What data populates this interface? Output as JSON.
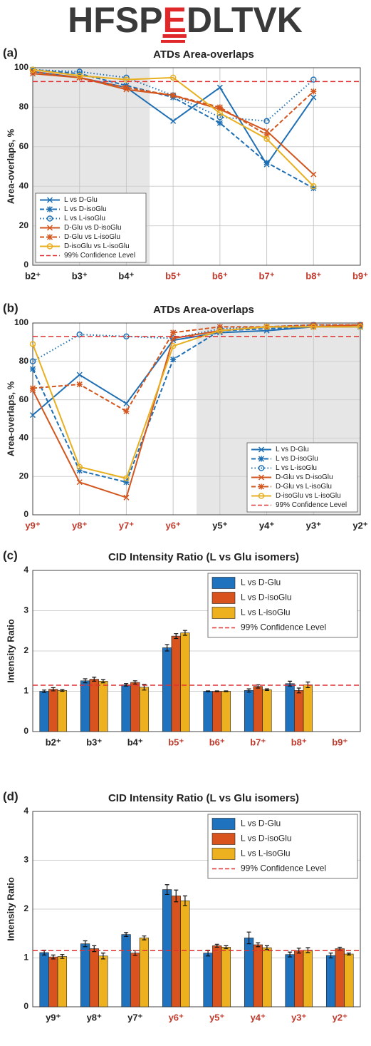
{
  "header": {
    "prefix": "HFSP",
    "highlight": "E",
    "suffix": "DLTVK"
  },
  "chart_data": [
    {
      "type": "line",
      "panel": "(a)",
      "title": "ATDs Area-overlaps",
      "ylabel": "Area-overlaps, %",
      "categories": [
        "b2⁺",
        "b3⁺",
        "b4⁺",
        "b5⁺",
        "b6⁺",
        "b7⁺",
        "b8⁺",
        "b9⁺"
      ],
      "category_colors": [
        "#222222",
        "#222222",
        "#222222",
        "#c0392b",
        "#c0392b",
        "#c0392b",
        "#c0392b",
        "#c0392b"
      ],
      "ylim": [
        0,
        100
      ],
      "yticks": [
        0,
        20,
        40,
        60,
        80,
        100
      ],
      "grid": true,
      "legend": "lower left",
      "shade": [
        0,
        2.5
      ],
      "reference_line": {
        "name": "99% Confidence Level",
        "value": 93,
        "color": "#e03030"
      },
      "series": [
        {
          "name": "L vs D-Glu",
          "color": "#1f6fb4",
          "linestyle": "solid",
          "marker": "x",
          "values": [
            98,
            95,
            90,
            73,
            90,
            51,
            85,
            null
          ]
        },
        {
          "name": "L vs D-isoGlu",
          "color": "#1f6fb4",
          "linestyle": "dashed",
          "marker": "star",
          "values": [
            99,
            97,
            91,
            85,
            72,
            52,
            39,
            null
          ]
        },
        {
          "name": "L vs L-isoGlu",
          "color": "#1f6fb4",
          "linestyle": "dotted",
          "marker": "circle",
          "values": [
            99,
            98,
            95,
            86,
            75,
            73,
            94,
            null
          ]
        },
        {
          "name": "D-Glu vs D-isoGlu",
          "color": "#d2561e",
          "linestyle": "solid",
          "marker": "x",
          "values": [
            97,
            95,
            89,
            86,
            79,
            68,
            46,
            null
          ]
        },
        {
          "name": "D-Glu vs L-isoGlu",
          "color": "#d2561e",
          "linestyle": "dashed",
          "marker": "star",
          "values": [
            98,
            95,
            90,
            86,
            80,
            66,
            88,
            null
          ]
        },
        {
          "name": "D-isoGlu vs L-isoGlu",
          "color": "#e8b020",
          "linestyle": "solid",
          "marker": "circle",
          "values": [
            99,
            96,
            94,
            95,
            77,
            64,
            40,
            null
          ]
        }
      ]
    },
    {
      "type": "line",
      "panel": "(b)",
      "title": "ATDs Area-overlaps",
      "ylabel": "Area-overlaps, %",
      "categories": [
        "y9⁺",
        "y8⁺",
        "y7⁺",
        "y6⁺",
        "y5⁺",
        "y4⁺",
        "y3⁺",
        "y2⁺"
      ],
      "category_colors": [
        "#c0392b",
        "#c0392b",
        "#c0392b",
        "#c0392b",
        "#222222",
        "#222222",
        "#222222",
        "#222222"
      ],
      "ylim": [
        0,
        100
      ],
      "yticks": [
        0,
        20,
        40,
        60,
        80,
        100
      ],
      "grid": true,
      "legend": "lower right",
      "shade": [
        3.5,
        7
      ],
      "reference_line": {
        "name": "99% Confidence Level",
        "value": 93,
        "color": "#e03030"
      },
      "series": [
        {
          "name": "L vs D-Glu",
          "color": "#1f6fb4",
          "linestyle": "solid",
          "marker": "x",
          "values": [
            52,
            73,
            58,
            91,
            95,
            96,
            98,
            98
          ]
        },
        {
          "name": "L vs D-isoGlu",
          "color": "#1f6fb4",
          "linestyle": "dashed",
          "marker": "star",
          "values": [
            76,
            23,
            17,
            81,
            96,
            97,
            98,
            98
          ]
        },
        {
          "name": "L vs L-isoGlu",
          "color": "#1f6fb4",
          "linestyle": "dotted",
          "marker": "circle",
          "values": [
            80,
            94,
            93,
            92,
            97,
            98,
            99,
            99
          ]
        },
        {
          "name": "D-Glu vs D-isoGlu",
          "color": "#d2561e",
          "linestyle": "solid",
          "marker": "x",
          "values": [
            65,
            17,
            9,
            92,
            96,
            98,
            98,
            99
          ]
        },
        {
          "name": "D-Glu vs L-isoGlu",
          "color": "#d2561e",
          "linestyle": "dashed",
          "marker": "star",
          "values": [
            66,
            68,
            54,
            95,
            98,
            98,
            99,
            99
          ]
        },
        {
          "name": "D-isoGlu vs L-isoGlu",
          "color": "#e8b020",
          "linestyle": "solid",
          "marker": "circle",
          "values": [
            89,
            25,
            19,
            88,
            96,
            98,
            98,
            98
          ]
        }
      ]
    },
    {
      "type": "bar",
      "panel": "(c)",
      "title": "CID Intensity Ratio (L vs Glu isomers)",
      "ylabel": "Intensity Ratio",
      "categories": [
        "b2⁺",
        "b3⁺",
        "b4⁺",
        "b5⁺",
        "b6⁺",
        "b7⁺",
        "b8⁺",
        "b9⁺"
      ],
      "category_colors": [
        "#222222",
        "#222222",
        "#222222",
        "#c0392b",
        "#c0392b",
        "#c0392b",
        "#c0392b",
        "#c0392b"
      ],
      "ylim": [
        0,
        4
      ],
      "yticks": [
        0,
        1,
        2,
        3,
        4
      ],
      "grid": true,
      "legend": "upper right",
      "reference_line": {
        "name": "99% Confidence Level",
        "value": 1.15,
        "color": "#e03030"
      },
      "series": [
        {
          "name": "L vs D-Glu",
          "color": "#1f72bd",
          "values": [
            1.0,
            1.26,
            1.16,
            2.08,
            1.0,
            1.02,
            1.19,
            null
          ],
          "errors": [
            0.03,
            0.05,
            0.03,
            0.08,
            0.01,
            0.04,
            0.06,
            null
          ]
        },
        {
          "name": "L vs D-isoGlu",
          "color": "#d9531e",
          "values": [
            1.05,
            1.3,
            1.22,
            2.37,
            1.0,
            1.12,
            1.02,
            null
          ],
          "errors": [
            0.04,
            0.05,
            0.04,
            0.06,
            0.01,
            0.04,
            0.06,
            null
          ]
        },
        {
          "name": "L vs L-isoGlu",
          "color": "#edb120",
          "values": [
            1.02,
            1.25,
            1.1,
            2.45,
            1.0,
            1.04,
            1.16,
            null
          ],
          "errors": [
            0.02,
            0.04,
            0.07,
            0.06,
            0.01,
            0.02,
            0.07,
            null
          ]
        }
      ]
    },
    {
      "type": "bar",
      "panel": "(d)",
      "title": "CID Intensity Ratio (L vs Glu isomers)",
      "ylabel": "Intensity Ratio",
      "categories": [
        "y9⁺",
        "y8⁺",
        "y7⁺",
        "y6⁺",
        "y5⁺",
        "y4⁺",
        "y3⁺",
        "y2⁺"
      ],
      "category_colors": [
        "#222222",
        "#222222",
        "#222222",
        "#c0392b",
        "#c0392b",
        "#c0392b",
        "#c0392b",
        "#c0392b"
      ],
      "ylim": [
        0,
        4
      ],
      "yticks": [
        0,
        1,
        2,
        3,
        4
      ],
      "grid": true,
      "legend": "upper right",
      "reference_line": {
        "name": "99% Confidence Level",
        "value": 1.15,
        "color": "#e03030"
      },
      "series": [
        {
          "name": "L vs D-Glu",
          "color": "#1f72bd",
          "values": [
            1.11,
            1.29,
            1.48,
            2.4,
            1.1,
            1.41,
            1.07,
            1.05
          ],
          "errors": [
            0.05,
            0.06,
            0.04,
            0.1,
            0.06,
            0.12,
            0.05,
            0.05
          ]
        },
        {
          "name": "L vs D-isoGlu",
          "color": "#d9531e",
          "values": [
            1.02,
            1.19,
            1.1,
            2.27,
            1.25,
            1.27,
            1.15,
            1.19
          ],
          "errors": [
            0.04,
            0.06,
            0.05,
            0.12,
            0.03,
            0.04,
            0.05,
            0.03
          ]
        },
        {
          "name": "L vs L-isoGlu",
          "color": "#edb120",
          "values": [
            1.03,
            1.04,
            1.41,
            2.17,
            1.22,
            1.21,
            1.16,
            1.08
          ],
          "errors": [
            0.04,
            0.06,
            0.04,
            0.1,
            0.03,
            0.04,
            0.05,
            0.02
          ]
        }
      ]
    }
  ]
}
